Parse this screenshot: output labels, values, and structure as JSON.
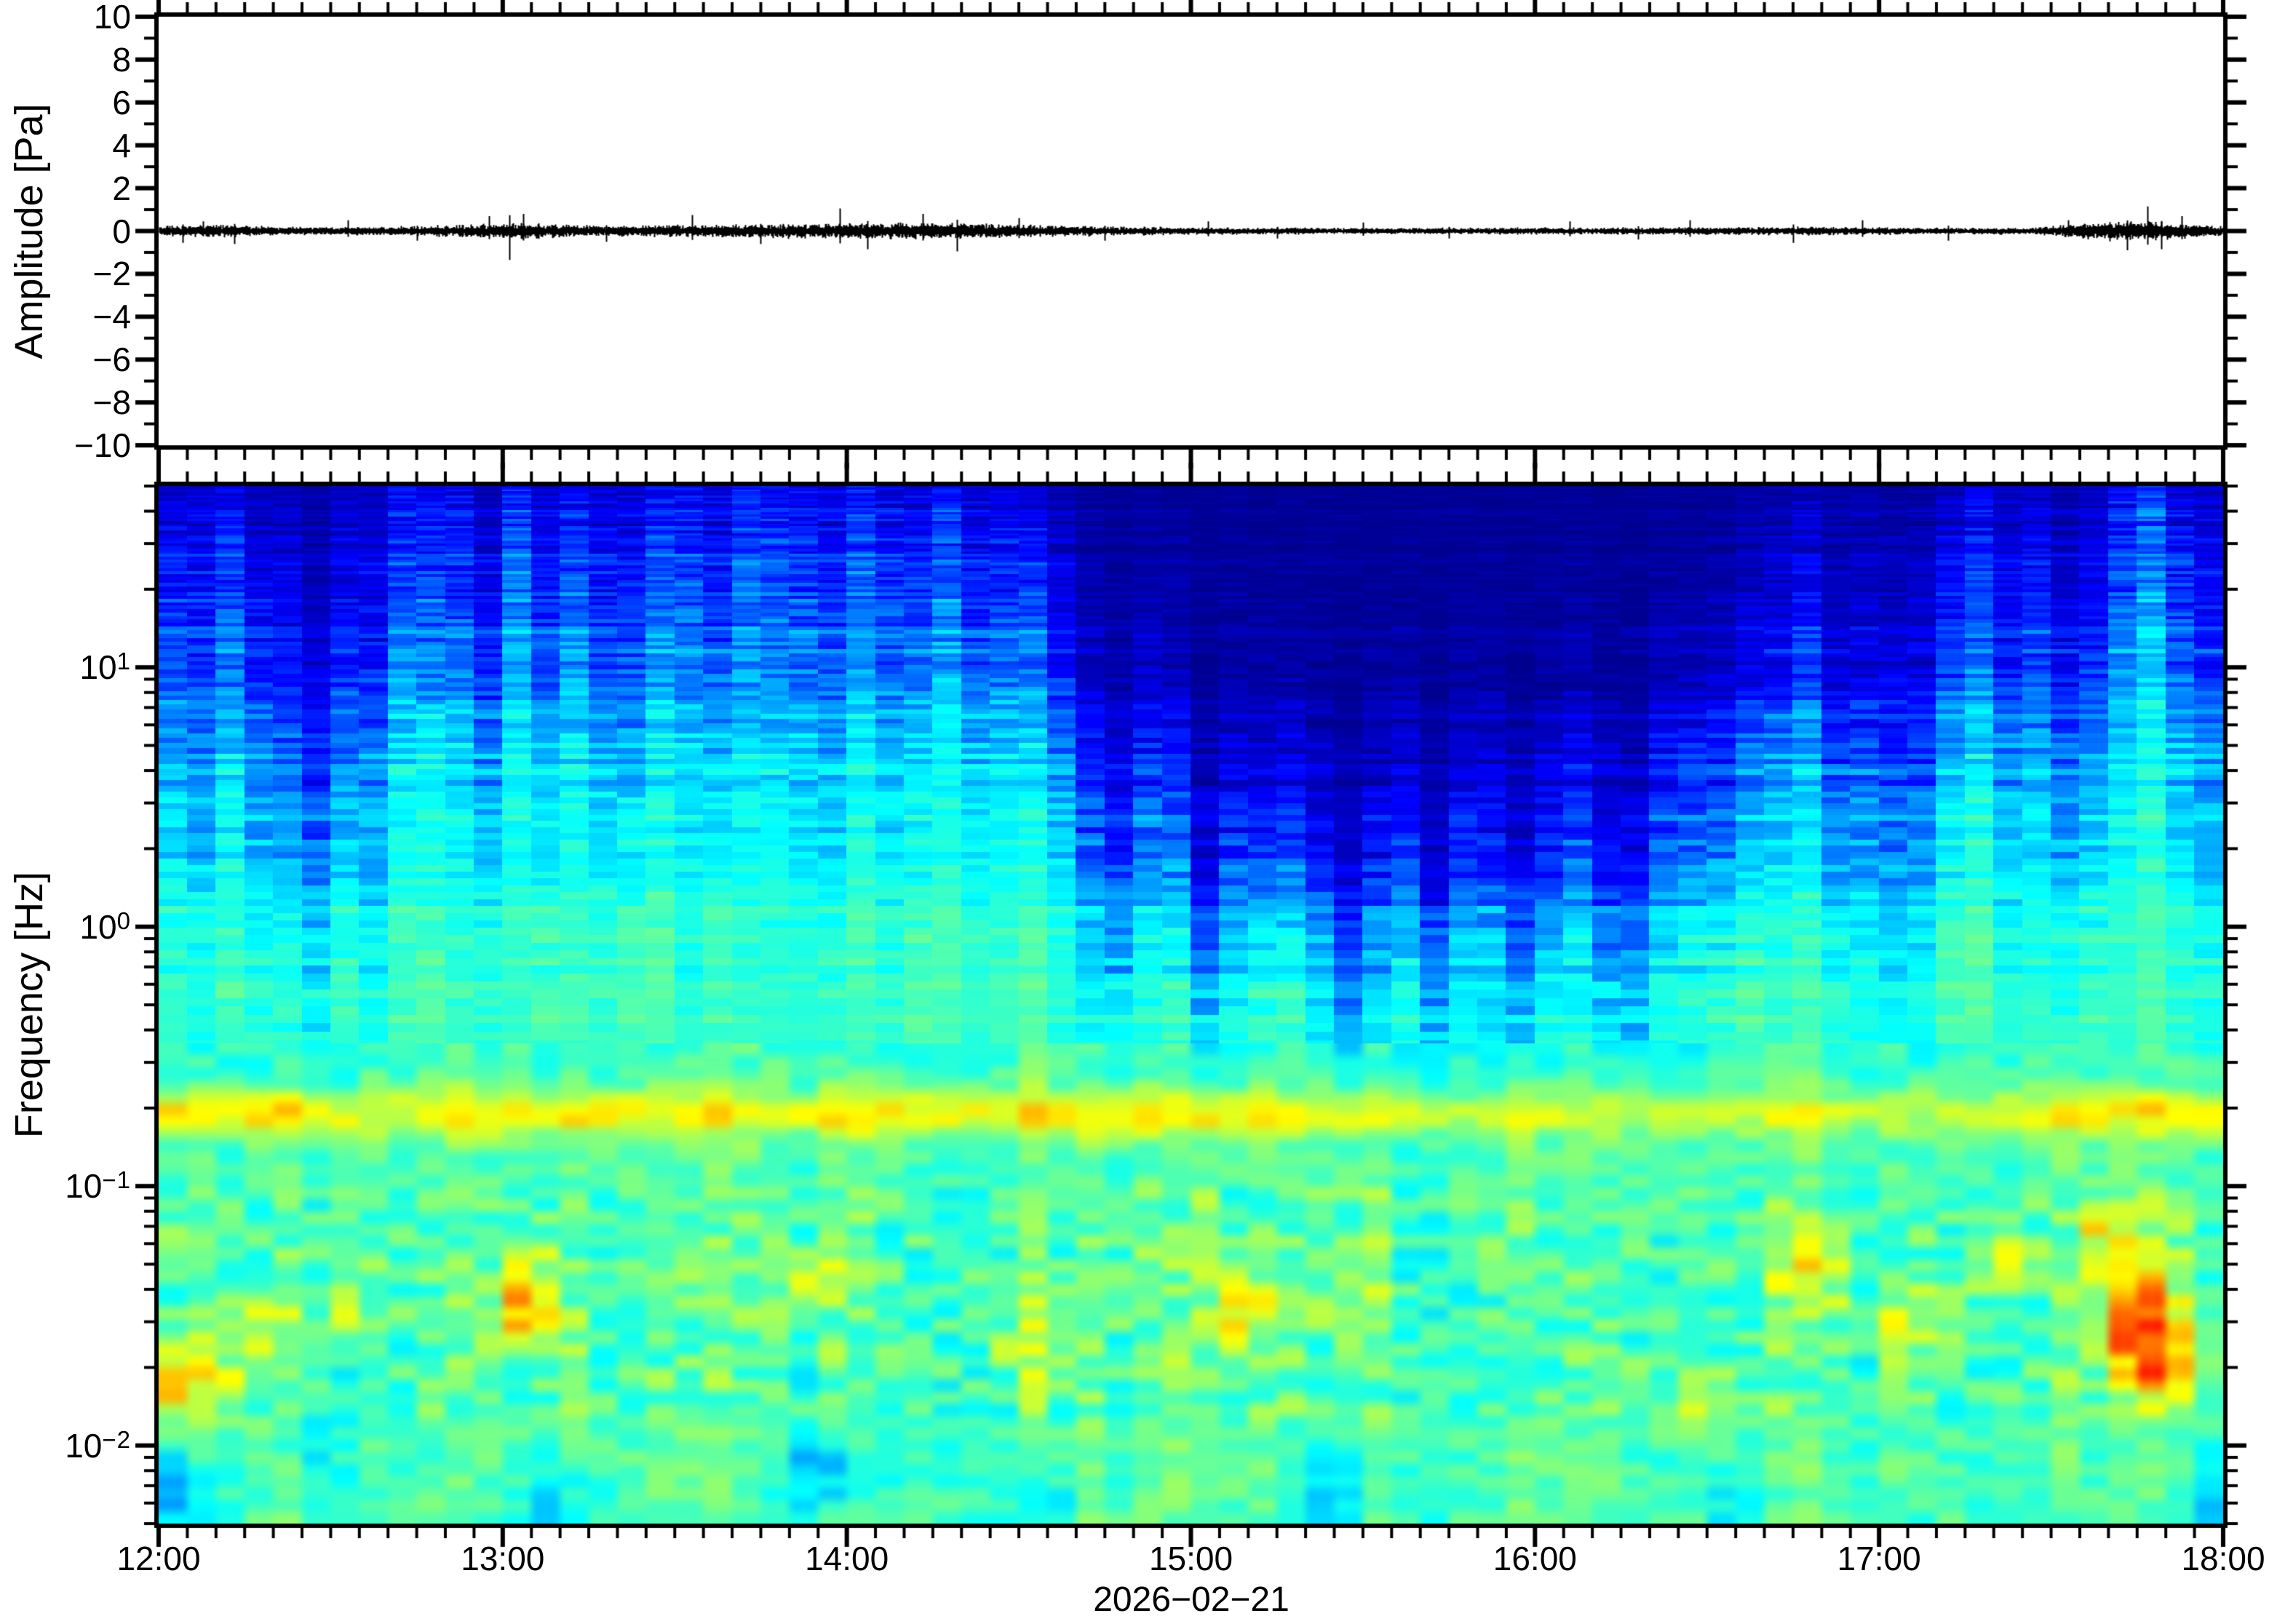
{
  "figure": {
    "background": "#ffffff",
    "frame_color": "#000000",
    "date_label": "2026−02−21"
  },
  "chart_data": {
    "type": [
      "line",
      "heatmap"
    ],
    "seed": 20260221,
    "x_axis": {
      "start_hour": 12,
      "end_hour": 18,
      "tick_labels": [
        "12:00",
        "13:00",
        "14:00",
        "15:00",
        "16:00",
        "17:00",
        "18:00"
      ],
      "minor_tick_minutes": 5,
      "date": "2026−02−21"
    },
    "waveform_panel": {
      "ylabel": "Amplitude [Pa]",
      "ylim": [
        -10,
        10
      ],
      "ytick_major": 2,
      "ytick_minor": 1,
      "ytick_labels": [
        "10",
        "8",
        "6",
        "4",
        "2",
        "0",
        "−2",
        "−4",
        "−6",
        "−8",
        "−10"
      ],
      "ytick_values": [
        10,
        8,
        6,
        4,
        2,
        0,
        -2,
        -4,
        -6,
        -8,
        -10
      ],
      "trace_color": "#000000",
      "envelope_nodes": [
        [
          12.0,
          0.18
        ],
        [
          12.2,
          0.22
        ],
        [
          12.35,
          0.15
        ],
        [
          12.6,
          0.14
        ],
        [
          12.9,
          0.22
        ],
        [
          13.05,
          0.28
        ],
        [
          13.3,
          0.18
        ],
        [
          13.6,
          0.22
        ],
        [
          13.9,
          0.26
        ],
        [
          14.1,
          0.28
        ],
        [
          14.35,
          0.26
        ],
        [
          14.6,
          0.2
        ],
        [
          14.8,
          0.16
        ],
        [
          15.0,
          0.13
        ],
        [
          15.3,
          0.12
        ],
        [
          15.6,
          0.11
        ],
        [
          15.9,
          0.12
        ],
        [
          16.2,
          0.12
        ],
        [
          16.5,
          0.13
        ],
        [
          16.8,
          0.15
        ],
        [
          17.0,
          0.14
        ],
        [
          17.2,
          0.11
        ],
        [
          17.45,
          0.13
        ],
        [
          17.7,
          0.38
        ],
        [
          17.85,
          0.3
        ],
        [
          18.0,
          0.16
        ]
      ],
      "spikes": [
        [
          12.07,
          0.55
        ],
        [
          12.13,
          0.45
        ],
        [
          12.22,
          0.6
        ],
        [
          12.55,
          0.5
        ],
        [
          12.75,
          0.45
        ],
        [
          12.96,
          0.7
        ],
        [
          13.02,
          1.35
        ],
        [
          13.06,
          0.8
        ],
        [
          13.3,
          0.5
        ],
        [
          13.55,
          0.75
        ],
        [
          13.75,
          0.6
        ],
        [
          13.98,
          1.05
        ],
        [
          14.06,
          0.85
        ],
        [
          14.22,
          0.8
        ],
        [
          14.32,
          0.95
        ],
        [
          14.5,
          0.6
        ],
        [
          14.75,
          0.45
        ],
        [
          15.05,
          0.45
        ],
        [
          15.25,
          0.35
        ],
        [
          15.5,
          0.4
        ],
        [
          15.75,
          0.35
        ],
        [
          16.1,
          0.45
        ],
        [
          16.3,
          0.4
        ],
        [
          16.45,
          0.5
        ],
        [
          16.75,
          0.55
        ],
        [
          16.95,
          0.5
        ],
        [
          17.2,
          0.45
        ],
        [
          17.55,
          0.5
        ],
        [
          17.72,
          0.9
        ],
        [
          17.78,
          1.15
        ],
        [
          17.82,
          0.85
        ],
        [
          17.88,
          0.7
        ]
      ]
    },
    "spectrogram_panel": {
      "ylabel": "Frequency [Hz]",
      "yscale": "log",
      "ylim": [
        0.005,
        50
      ],
      "ytick_labels": [
        {
          "f": 10,
          "base": "10",
          "exp": "1"
        },
        {
          "f": 1,
          "base": "10",
          "exp": "0"
        },
        {
          "f": 0.1,
          "base": "10",
          "exp": "−1"
        },
        {
          "f": 0.01,
          "base": "10",
          "exp": "−2"
        }
      ],
      "colormap": "jet",
      "colormap_anchors": {
        "low": "#00007f",
        "mid": "#00ffff",
        "high": "#ff0f00"
      },
      "time_bin_minutes": 5,
      "columns": 72,
      "upper_transition": {
        "mu_nodes": [
          [
            12.0,
            1.0
          ],
          [
            12.25,
            0.85
          ],
          [
            12.45,
            0.55
          ],
          [
            12.7,
            0.9
          ],
          [
            13.05,
            1.1
          ],
          [
            13.3,
            0.85
          ],
          [
            13.6,
            1.0
          ],
          [
            13.85,
            1.05
          ],
          [
            14.1,
            1.1
          ],
          [
            14.35,
            1.0
          ],
          [
            14.55,
            0.8
          ],
          [
            14.8,
            0.45
          ],
          [
            15.0,
            0.2
          ],
          [
            15.3,
            0.12
          ],
          [
            15.6,
            0.15
          ],
          [
            15.9,
            0.1
          ],
          [
            16.15,
            0.2
          ],
          [
            16.4,
            0.3
          ],
          [
            16.6,
            0.45
          ],
          [
            16.8,
            0.55
          ],
          [
            17.0,
            0.5
          ],
          [
            17.2,
            0.65
          ],
          [
            17.35,
            0.8
          ],
          [
            17.5,
            0.6
          ],
          [
            17.65,
            0.9
          ],
          [
            17.8,
            1.05
          ],
          [
            17.95,
            0.8
          ]
        ],
        "sigma_nodes": [
          [
            12.0,
            0.5
          ],
          [
            13.0,
            0.45
          ],
          [
            14.0,
            0.5
          ],
          [
            14.8,
            0.35
          ],
          [
            15.2,
            0.28
          ],
          [
            16.0,
            0.3
          ],
          [
            16.6,
            0.35
          ],
          [
            17.0,
            0.4
          ],
          [
            17.5,
            0.45
          ],
          [
            18.0,
            0.5
          ]
        ],
        "v_floor": 0.02,
        "v_span": 0.43,
        "bright_column_times": [
          12.17,
          12.75,
          13.05,
          13.17,
          13.42,
          13.58,
          13.75,
          14.08,
          14.33,
          14.5,
          16.75,
          17.25,
          17.42,
          17.75,
          17.83
        ],
        "dark_column_times": [
          12.42,
          12.92,
          14.67,
          14.83,
          15.08,
          15.42,
          15.67,
          15.92,
          16.17,
          16.3
        ]
      },
      "low_profile_u_v": [
        [
          -0.45,
          0.46
        ],
        [
          -0.6,
          0.5
        ],
        [
          -0.72,
          0.53
        ],
        [
          -0.85,
          0.555
        ],
        [
          -1.0,
          0.565
        ],
        [
          -1.2,
          0.58
        ],
        [
          -1.4,
          0.595
        ],
        [
          -1.6,
          0.6
        ],
        [
          -1.8,
          0.59
        ],
        [
          -2.0,
          0.575
        ],
        [
          -2.15,
          0.555
        ],
        [
          -2.301,
          0.535
        ]
      ],
      "microbarom_band": {
        "center_freq_hz": 0.19,
        "center_u": -0.72,
        "sigma_u": 0.085,
        "amplitude_nodes": [
          [
            12.0,
            0.2
          ],
          [
            12.3,
            0.22
          ],
          [
            12.6,
            0.16
          ],
          [
            13.0,
            0.2
          ],
          [
            13.4,
            0.15
          ],
          [
            13.8,
            0.17
          ],
          [
            14.1,
            0.2
          ],
          [
            14.5,
            0.18
          ],
          [
            14.9,
            0.16
          ],
          [
            15.3,
            0.15
          ],
          [
            15.8,
            0.13
          ],
          [
            16.3,
            0.14
          ],
          [
            16.8,
            0.13
          ],
          [
            17.2,
            0.12
          ],
          [
            17.6,
            0.17
          ],
          [
            17.8,
            0.2
          ],
          [
            18.0,
            0.2
          ]
        ]
      },
      "hotspots": [
        [
          12.08,
          -1.75,
          0.1,
          0.12,
          0.22
        ],
        [
          12.3,
          -1.55,
          0.08,
          0.1,
          0.12
        ],
        [
          12.55,
          -1.45,
          0.06,
          0.09,
          0.12
        ],
        [
          13.07,
          -1.5,
          0.07,
          0.1,
          0.26
        ],
        [
          13.07,
          -1.28,
          0.05,
          0.08,
          0.15
        ],
        [
          13.9,
          -1.35,
          0.1,
          0.1,
          0.1
        ],
        [
          14.55,
          -1.6,
          0.08,
          0.1,
          0.12
        ],
        [
          15.15,
          -1.5,
          0.07,
          0.1,
          0.16
        ],
        [
          15.45,
          -1.35,
          0.06,
          0.09,
          0.12
        ],
        [
          16.45,
          -1.8,
          0.07,
          0.1,
          0.1
        ],
        [
          16.8,
          -1.35,
          0.08,
          0.1,
          0.14
        ],
        [
          17.1,
          -1.5,
          0.07,
          0.1,
          0.14
        ],
        [
          17.35,
          -1.3,
          0.06,
          0.09,
          0.16
        ],
        [
          17.65,
          -1.15,
          0.05,
          0.08,
          0.18
        ],
        [
          17.75,
          -1.45,
          0.09,
          0.18,
          0.3
        ],
        [
          17.8,
          -1.7,
          0.08,
          0.12,
          0.22
        ]
      ],
      "coldspots": [
        [
          12.05,
          -2.2,
          0.06,
          0.15,
          -0.13
        ],
        [
          12.45,
          -2.0,
          0.06,
          0.1,
          -0.08
        ],
        [
          13.15,
          -2.25,
          0.08,
          0.12,
          -0.12
        ],
        [
          13.95,
          -2.1,
          0.1,
          0.12,
          -0.14
        ],
        [
          14.55,
          -2.25,
          0.07,
          0.1,
          -0.1
        ],
        [
          15.4,
          -2.2,
          0.08,
          0.12,
          -0.12
        ],
        [
          16.6,
          -2.25,
          0.07,
          0.1,
          -0.1
        ],
        [
          17.95,
          -2.2,
          0.05,
          0.12,
          -0.12
        ]
      ]
    }
  }
}
